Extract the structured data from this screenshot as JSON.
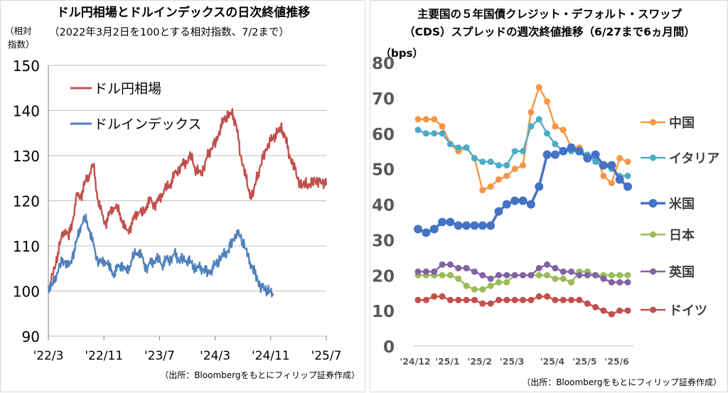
{
  "chart_data": [
    {
      "type": "line",
      "title": "ドル円相場とドルインデックスの日次終値推移",
      "subtitle": "（2022年3月2日を100とする相対指数、7/2まで）",
      "ylabel_line1": "（相対",
      "ylabel_line2": "指数）",
      "ylim": [
        90,
        150
      ],
      "yticks": [
        "90",
        "100",
        "110",
        "120",
        "130",
        "140",
        "150"
      ],
      "x_tick_labels": [
        "'22/3",
        "'22/11",
        "'23/7",
        "'24/3",
        "'24/11",
        "'25/7"
      ],
      "grid": true,
      "legend_placement": "top-left",
      "source": "（出所：Bloombergをもとにフィリップ証券作成）",
      "series": [
        {
          "name": "ドル円相場",
          "color": "#c0504d",
          "points": [
            [
              0,
              100
            ],
            [
              2,
              103
            ],
            [
              4,
              107
            ],
            [
              6,
              111
            ],
            [
              8,
              114
            ],
            [
              10,
              112
            ],
            [
              12,
              116
            ],
            [
              14,
              121
            ],
            [
              16,
              121
            ],
            [
              18,
              124
            ],
            [
              20,
              126
            ],
            [
              22,
              128
            ],
            [
              24,
              121
            ],
            [
              26,
              117
            ],
            [
              28,
              115
            ],
            [
              30,
              117
            ],
            [
              32,
              119
            ],
            [
              34,
              118
            ],
            [
              36,
              116
            ],
            [
              38,
              113
            ],
            [
              40,
              114
            ],
            [
              42,
              116
            ],
            [
              44,
              118
            ],
            [
              46,
              117
            ],
            [
              48,
              119
            ],
            [
              50,
              120
            ],
            [
              52,
              119
            ],
            [
              54,
              120
            ],
            [
              56,
              122
            ],
            [
              58,
              123
            ],
            [
              60,
              124
            ],
            [
              62,
              126
            ],
            [
              64,
              127
            ],
            [
              66,
              128
            ],
            [
              68,
              129
            ],
            [
              70,
              130
            ],
            [
              72,
              127
            ],
            [
              74,
              126
            ],
            [
              76,
              127
            ],
            [
              78,
              130
            ],
            [
              80,
              132
            ],
            [
              82,
              133
            ],
            [
              84,
              136
            ],
            [
              86,
              138
            ],
            [
              88,
              139
            ],
            [
              90,
              139
            ],
            [
              92,
              137
            ],
            [
              94,
              130
            ],
            [
              96,
              127
            ],
            [
              98,
              122
            ],
            [
              100,
              121
            ],
            [
              102,
              125
            ],
            [
              104,
              128
            ],
            [
              106,
              131
            ],
            [
              108,
              133
            ],
            [
              110,
              134
            ],
            [
              112,
              135
            ],
            [
              114,
              136
            ],
            [
              116,
              134
            ],
            [
              118,
              130
            ],
            [
              120,
              128
            ],
            [
              122,
              125
            ],
            [
              124,
              123
            ],
            [
              126,
              124
            ],
            [
              128,
              123
            ],
            [
              130,
              125
            ],
            [
              132,
              124
            ],
            [
              134,
              124.5
            ],
            [
              136,
              123.5
            ]
          ]
        },
        {
          "name": "ドルインデックス",
          "color": "#4f81bd",
          "points": [
            [
              0,
              101
            ],
            [
              2,
              101
            ],
            [
              4,
              104
            ],
            [
              6,
              106
            ],
            [
              8,
              107
            ],
            [
              10,
              105
            ],
            [
              12,
              108
            ],
            [
              14,
              111
            ],
            [
              16,
              115
            ],
            [
              18,
              116
            ],
            [
              20,
              114
            ],
            [
              22,
              110
            ],
            [
              24,
              107
            ],
            [
              26,
              106
            ],
            [
              28,
              107
            ],
            [
              30,
              105
            ],
            [
              32,
              104
            ],
            [
              34,
              105
            ],
            [
              36,
              106
            ],
            [
              38,
              104
            ],
            [
              40,
              106
            ],
            [
              42,
              108
            ],
            [
              44,
              109
            ],
            [
              46,
              107
            ],
            [
              48,
              105
            ],
            [
              50,
              106
            ],
            [
              52,
              107
            ],
            [
              54,
              107
            ],
            [
              56,
              106
            ],
            [
              58,
              107
            ],
            [
              60,
              107
            ],
            [
              62,
              108
            ],
            [
              64,
              107
            ],
            [
              66,
              107
            ],
            [
              68,
              107
            ],
            [
              70,
              106
            ],
            [
              72,
              105
            ],
            [
              74,
              105
            ],
            [
              76,
              105
            ],
            [
              78,
              104
            ],
            [
              80,
              105
            ],
            [
              82,
              106
            ],
            [
              84,
              107
            ],
            [
              86,
              108
            ],
            [
              88,
              109
            ],
            [
              90,
              111
            ],
            [
              92,
              113
            ],
            [
              94,
              112
            ],
            [
              96,
              110
            ],
            [
              98,
              107
            ],
            [
              100,
              105
            ],
            [
              102,
              103
            ],
            [
              104,
              101
            ],
            [
              106,
              100.5
            ],
            [
              108,
              100
            ],
            [
              110,
              99
            ]
          ]
        }
      ]
    },
    {
      "type": "line",
      "title": "主要国の５年国債クレジット・デフォルト・スワップ",
      "subtitle": "（CDS）スプレッドの週次終値推移（6/27まで6ヵ月間）",
      "ylabel": "（bps）",
      "ylim": [
        0,
        80
      ],
      "yticks": [
        "0",
        "10",
        "20",
        "30",
        "40",
        "50",
        "60",
        "70",
        "80"
      ],
      "x_tick_labels": [
        "'24/12",
        "'25/1",
        "'25/2",
        "'25/3",
        "'25/4",
        "'25/5",
        "'25/6"
      ],
      "grid": false,
      "legend_placement": "right",
      "source": "（出所：Bloombergをもとにフィリップ証券作成）",
      "series": [
        {
          "name": "中国",
          "color": "#f79646",
          "values": [
            64,
            64,
            64,
            62,
            57,
            55,
            56,
            53,
            44,
            45,
            47,
            48,
            50,
            51,
            66,
            73,
            69,
            62,
            61,
            56,
            56,
            53,
            54,
            48,
            46,
            53,
            52
          ]
        },
        {
          "name": "イタリア",
          "color": "#4bacc6",
          "values": [
            61,
            60,
            60,
            60,
            57,
            56,
            56,
            53,
            52,
            52,
            51,
            51,
            55,
            55,
            62,
            64,
            60,
            57,
            55,
            55,
            55,
            54,
            52,
            51,
            50,
            48,
            48
          ]
        },
        {
          "name": "米国",
          "color": "#4472c4",
          "values": [
            33,
            32,
            33,
            35,
            35,
            34,
            34,
            34,
            34,
            34,
            38,
            40,
            41,
            41,
            40,
            45,
            54,
            54,
            55,
            56,
            55,
            53,
            54,
            51,
            51,
            47,
            45
          ]
        },
        {
          "name": "日本",
          "color": "#9bbb59",
          "values": [
            20,
            20,
            20,
            20,
            20,
            19,
            17,
            16,
            16,
            17,
            18,
            18,
            20,
            20,
            20,
            20,
            20,
            19,
            19,
            18,
            21,
            21,
            20,
            20,
            20,
            20,
            20
          ]
        },
        {
          "name": "英国",
          "color": "#8064a2",
          "values": [
            21,
            21,
            21,
            23,
            23,
            22,
            22,
            21,
            20,
            19,
            20,
            20,
            20,
            20,
            20,
            22,
            23,
            22,
            21,
            21,
            20,
            20,
            20,
            19,
            18,
            18,
            18
          ]
        },
        {
          "name": "ドイツ",
          "color": "#c0504d",
          "values": [
            13,
            13,
            14,
            14,
            13,
            13,
            13,
            13,
            12,
            12,
            13,
            13,
            13,
            13,
            13,
            14,
            14,
            13,
            13,
            13,
            13,
            12,
            11,
            10,
            9,
            10,
            10
          ]
        }
      ]
    }
  ]
}
